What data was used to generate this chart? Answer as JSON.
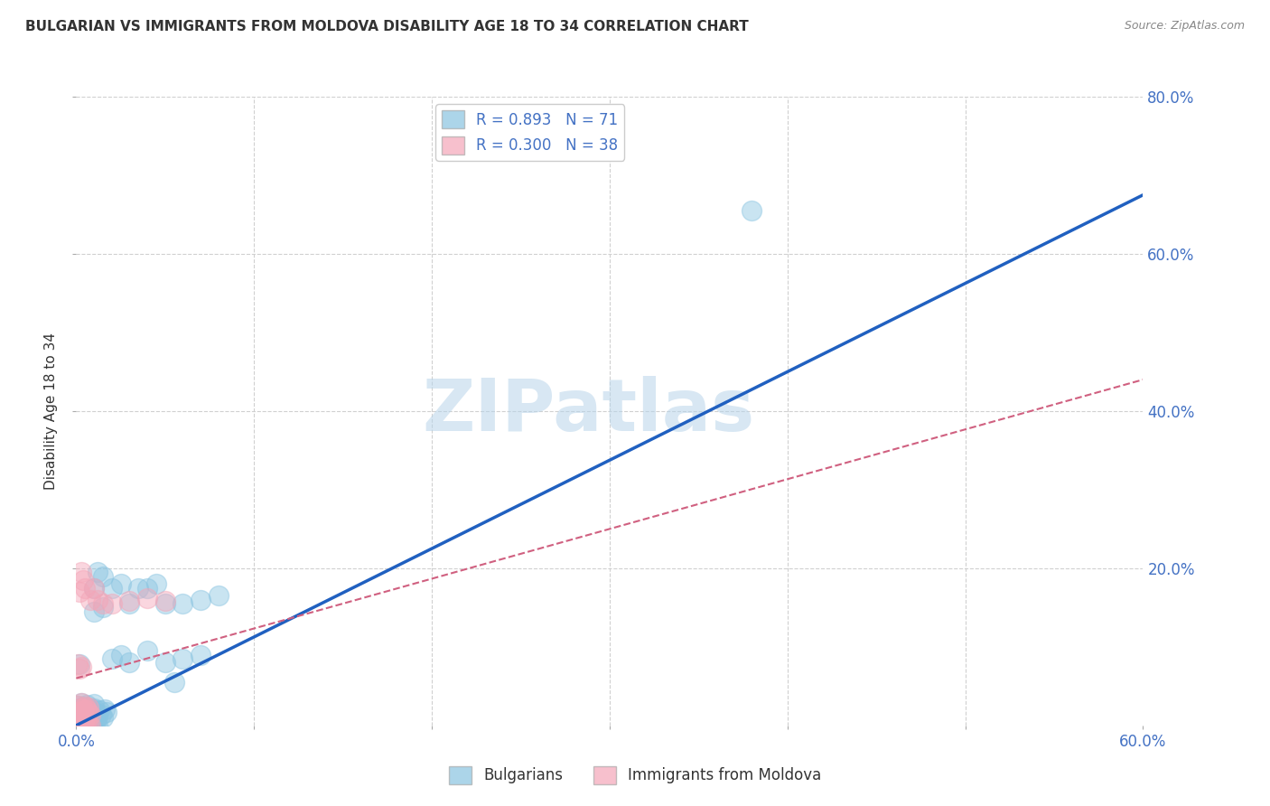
{
  "title": "BULGARIAN VS IMMIGRANTS FROM MOLDOVA DISABILITY AGE 18 TO 34 CORRELATION CHART",
  "source": "Source: ZipAtlas.com",
  "ylabel": "Disability Age 18 to 34",
  "xlim": [
    0.0,
    0.6
  ],
  "ylim": [
    0.0,
    0.8
  ],
  "xticks": [
    0.0,
    0.1,
    0.2,
    0.3,
    0.4,
    0.5,
    0.6
  ],
  "yticks": [
    0.2,
    0.4,
    0.6,
    0.8
  ],
  "xticklabels": [
    "0.0%",
    "",
    "",
    "",
    "",
    "",
    "60.0%"
  ],
  "yticklabels": [
    "20.0%",
    "40.0%",
    "60.0%",
    "80.0%"
  ],
  "legend_R1": "R = 0.893",
  "legend_N1": "N = 71",
  "legend_R2": "R = 0.300",
  "legend_N2": "N = 38",
  "watermark": "ZIPatlas",
  "bg_color": "#ffffff",
  "grid_color": "#d0d0d0",
  "blue_color": "#89c4e1",
  "pink_color": "#f4a6b8",
  "blue_line_color": "#2060c0",
  "pink_line_color": "#d06080",
  "blue_line_x": [
    0.0,
    0.6
  ],
  "blue_line_y": [
    0.0,
    0.675
  ],
  "pink_line_x": [
    0.0,
    0.6
  ],
  "pink_line_y": [
    0.06,
    0.44
  ],
  "blue_scatter": [
    [
      0.002,
      0.01
    ],
    [
      0.003,
      0.015
    ],
    [
      0.004,
      0.008
    ],
    [
      0.005,
      0.012
    ],
    [
      0.006,
      0.02
    ],
    [
      0.007,
      0.018
    ],
    [
      0.008,
      0.009
    ],
    [
      0.009,
      0.014
    ],
    [
      0.01,
      0.022
    ],
    [
      0.011,
      0.016
    ],
    [
      0.012,
      0.011
    ],
    [
      0.013,
      0.019
    ],
    [
      0.014,
      0.013
    ],
    [
      0.015,
      0.01
    ],
    [
      0.016,
      0.021
    ],
    [
      0.017,
      0.017
    ],
    [
      0.001,
      0.0
    ],
    [
      0.002,
      0.002
    ],
    [
      0.003,
      0.001
    ],
    [
      0.004,
      0.003
    ],
    [
      0.005,
      0.0
    ],
    [
      0.006,
      0.004
    ],
    [
      0.007,
      0.001
    ],
    [
      0.008,
      0.0
    ],
    [
      0.009,
      0.002
    ],
    [
      0.01,
      0.001
    ],
    [
      0.011,
      0.003
    ],
    [
      0.012,
      0.0
    ],
    [
      0.001,
      0.005
    ],
    [
      0.002,
      0.006
    ],
    [
      0.003,
      0.004
    ],
    [
      0.004,
      0.007
    ],
    [
      0.005,
      0.003
    ],
    [
      0.006,
      0.008
    ],
    [
      0.007,
      0.005
    ],
    [
      0.008,
      0.002
    ],
    [
      0.001,
      0.025
    ],
    [
      0.002,
      0.022
    ],
    [
      0.003,
      0.028
    ],
    [
      0.004,
      0.024
    ],
    [
      0.005,
      0.02
    ],
    [
      0.006,
      0.026
    ],
    [
      0.007,
      0.023
    ],
    [
      0.008,
      0.019
    ],
    [
      0.009,
      0.021
    ],
    [
      0.01,
      0.027
    ],
    [
      0.01,
      0.175
    ],
    [
      0.012,
      0.195
    ],
    [
      0.015,
      0.19
    ],
    [
      0.02,
      0.175
    ],
    [
      0.025,
      0.18
    ],
    [
      0.035,
      0.175
    ],
    [
      0.04,
      0.175
    ],
    [
      0.045,
      0.18
    ],
    [
      0.06,
      0.155
    ],
    [
      0.07,
      0.16
    ],
    [
      0.08,
      0.165
    ],
    [
      0.01,
      0.145
    ],
    [
      0.015,
      0.15
    ],
    [
      0.03,
      0.155
    ],
    [
      0.05,
      0.155
    ],
    [
      0.38,
      0.655
    ],
    [
      0.05,
      0.08
    ],
    [
      0.06,
      0.085
    ],
    [
      0.07,
      0.09
    ],
    [
      0.04,
      0.095
    ],
    [
      0.03,
      0.08
    ],
    [
      0.02,
      0.085
    ],
    [
      0.025,
      0.09
    ],
    [
      0.002,
      0.078
    ],
    [
      0.055,
      0.055
    ]
  ],
  "pink_scatter": [
    [
      0.001,
      0.01
    ],
    [
      0.002,
      0.015
    ],
    [
      0.003,
      0.012
    ],
    [
      0.004,
      0.018
    ],
    [
      0.005,
      0.008
    ],
    [
      0.006,
      0.02
    ],
    [
      0.007,
      0.016
    ],
    [
      0.008,
      0.014
    ],
    [
      0.001,
      0.0
    ],
    [
      0.002,
      0.003
    ],
    [
      0.003,
      0.001
    ],
    [
      0.004,
      0.002
    ],
    [
      0.005,
      0.0
    ],
    [
      0.006,
      0.004
    ],
    [
      0.007,
      0.001
    ],
    [
      0.008,
      0.0
    ],
    [
      0.001,
      0.025
    ],
    [
      0.002,
      0.022
    ],
    [
      0.003,
      0.028
    ],
    [
      0.004,
      0.02
    ],
    [
      0.005,
      0.024
    ],
    [
      0.006,
      0.019
    ],
    [
      0.007,
      0.023
    ],
    [
      0.01,
      0.175
    ],
    [
      0.003,
      0.195
    ],
    [
      0.004,
      0.185
    ],
    [
      0.03,
      0.158
    ],
    [
      0.04,
      0.162
    ],
    [
      0.05,
      0.158
    ],
    [
      0.002,
      0.17
    ],
    [
      0.005,
      0.175
    ],
    [
      0.008,
      0.16
    ],
    [
      0.012,
      0.16
    ],
    [
      0.015,
      0.155
    ],
    [
      0.02,
      0.155
    ],
    [
      0.001,
      0.078
    ],
    [
      0.002,
      0.072
    ],
    [
      0.003,
      0.075
    ]
  ]
}
